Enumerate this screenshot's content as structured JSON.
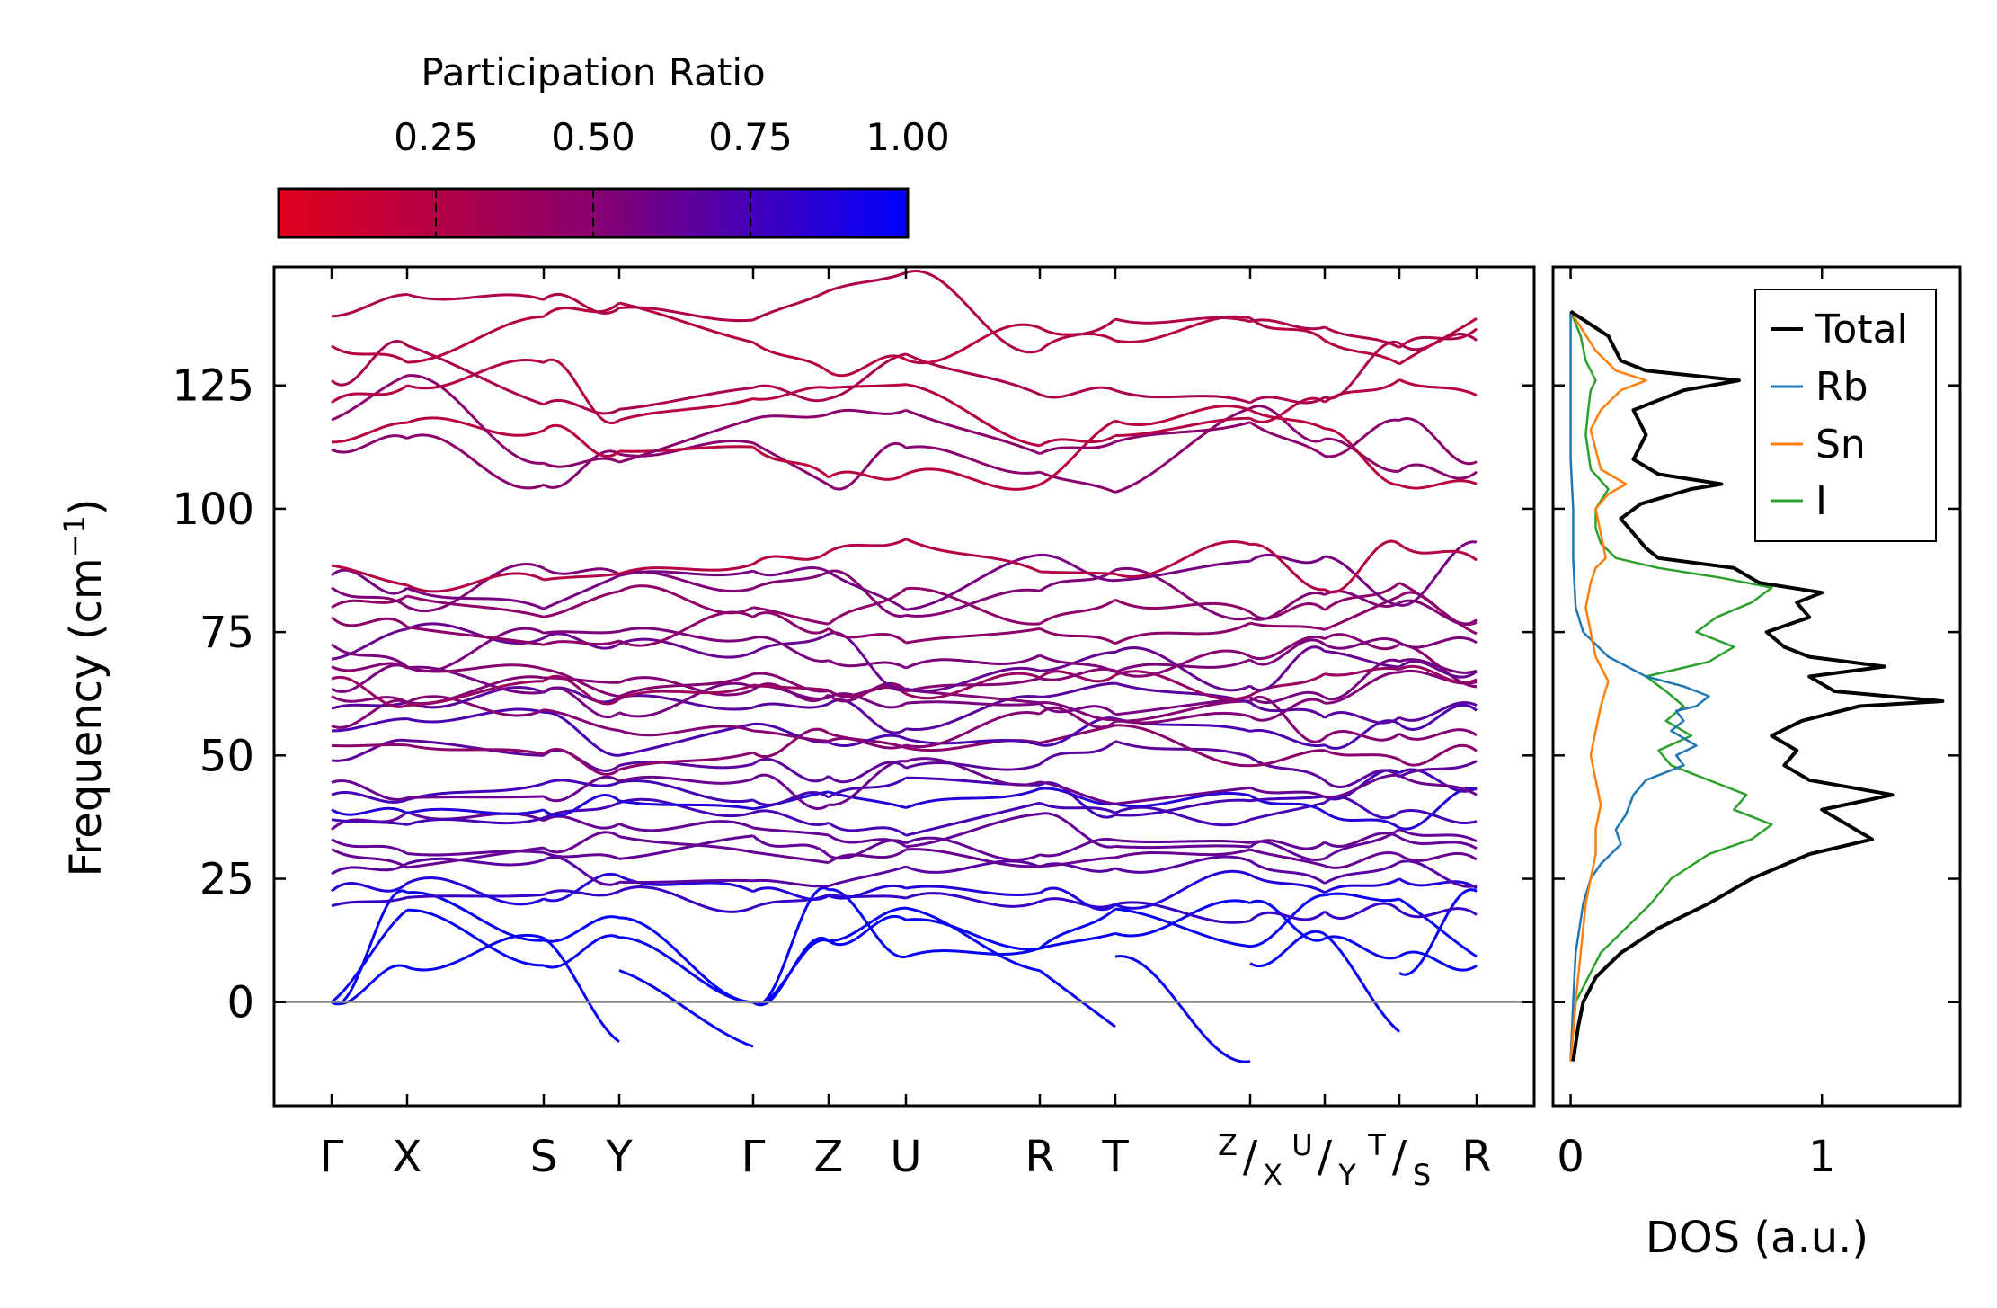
{
  "chart_data": [
    {
      "type": "line",
      "subtype": "phonon-band-structure",
      "ylabel": "Frequency (cm",
      "ylabel_sup": "−1",
      "ylabel_end": ")",
      "ylim": [
        -21,
        149
      ],
      "yticks": [
        0,
        25,
        50,
        75,
        100,
        125
      ],
      "ytick_labels": [
        "0",
        "25",
        "50",
        "75",
        "100",
        "125"
      ],
      "zero_line": true,
      "kpoint_labels": [
        "Γ",
        "X",
        "S",
        "Y",
        "Γ",
        "Z",
        "U",
        "R",
        "T",
        "Z",
        "X",
        "U",
        "Y",
        "T",
        "S",
        "R"
      ],
      "kpoint_text": {
        "g1": "Γ",
        "x": "X",
        "s": "S",
        "y": "Y",
        "g2": "Γ",
        "z": "Z",
        "u": "U",
        "r1": "R",
        "t": "T",
        "zx_top": "Z",
        "zx_bot": "X",
        "uy_top": "U",
        "uy_bot": "Y",
        "ts_top": "T",
        "ts_bot": "S",
        "r2": "R",
        "slash": "/"
      },
      "segments": [
        {
          "from": "Γ",
          "to": "X"
        },
        {
          "from": "X",
          "to": "S"
        },
        {
          "from": "S",
          "to": "Y"
        },
        {
          "from": "Y",
          "to": "Γ"
        },
        {
          "from": "Γ",
          "to": "Z"
        },
        {
          "from": "Z",
          "to": "U"
        },
        {
          "from": "U",
          "to": "R"
        },
        {
          "from": "R",
          "to": "T"
        },
        {
          "from": "T",
          "to": "Z"
        },
        {
          "from": "X",
          "to": "U"
        },
        {
          "from": "Y",
          "to": "T"
        },
        {
          "from": "S",
          "to": "R"
        }
      ],
      "colorbar": {
        "label": "Participation Ratio",
        "range": [
          0.0,
          1.0
        ],
        "ticks": [
          0.25,
          0.5,
          0.75,
          1.0
        ],
        "tick_labels": [
          "0.25",
          "0.50",
          "0.75",
          "1.00"
        ],
        "colors": [
          "#e0001c",
          "#88006f",
          "#0000ff"
        ]
      },
      "band_frequencies_at_gamma": [
        0,
        0,
        0,
        19.5,
        22.5,
        26,
        31,
        33,
        35,
        37,
        39,
        42,
        44.5,
        49,
        52,
        55,
        56,
        59.5,
        62,
        63.5,
        65.5,
        68,
        69.5,
        72.5,
        78,
        80,
        84,
        86.5,
        88.5,
        112,
        113.5,
        118,
        121.5,
        126,
        133,
        139
      ]
    },
    {
      "type": "line",
      "subtype": "density-of-states",
      "xlabel": "DOS (a.u.)",
      "xlim": [
        -0.07,
        1.55
      ],
      "xticks": [
        0,
        1
      ],
      "xtick_labels": [
        "0",
        "1"
      ],
      "ylim": [
        -21,
        149
      ],
      "legend_position": "top-right",
      "series": [
        {
          "name": "Total",
          "color": "#000000",
          "freq": [
            -12,
            -5,
            0,
            5,
            10,
            15,
            20,
            25,
            30,
            33,
            36,
            39,
            42,
            45,
            48,
            51,
            54,
            57,
            60,
            61,
            63,
            66,
            68,
            70,
            72,
            75,
            78,
            81,
            83,
            85,
            88,
            90,
            92,
            95,
            98,
            101,
            104,
            105,
            107,
            110,
            115,
            120,
            124,
            126,
            128,
            130,
            135,
            140
          ],
          "value": [
            0.01,
            0.03,
            0.05,
            0.1,
            0.2,
            0.35,
            0.55,
            0.72,
            0.95,
            1.2,
            1.1,
            1.0,
            1.28,
            0.95,
            0.85,
            0.9,
            0.8,
            0.92,
            1.15,
            1.48,
            1.05,
            0.95,
            1.25,
            0.95,
            0.85,
            0.78,
            0.95,
            0.9,
            1.0,
            0.75,
            0.65,
            0.35,
            0.3,
            0.25,
            0.2,
            0.28,
            0.48,
            0.6,
            0.35,
            0.25,
            0.3,
            0.25,
            0.45,
            0.67,
            0.3,
            0.2,
            0.15,
            0.0
          ]
        },
        {
          "name": "Rb",
          "color": "#1f77b4",
          "freq": [
            -12,
            0,
            10,
            20,
            25,
            28,
            30,
            32,
            35,
            38,
            42,
            45,
            48,
            50,
            52,
            55,
            57,
            59,
            60,
            62,
            64,
            66,
            70,
            75,
            80,
            90,
            100,
            110,
            125,
            140
          ],
          "value": [
            0.0,
            0.01,
            0.02,
            0.05,
            0.08,
            0.12,
            0.16,
            0.2,
            0.18,
            0.22,
            0.25,
            0.3,
            0.45,
            0.42,
            0.5,
            0.4,
            0.45,
            0.42,
            0.5,
            0.55,
            0.45,
            0.3,
            0.15,
            0.05,
            0.02,
            0.01,
            0.01,
            0.0,
            0.0,
            0.0
          ]
        },
        {
          "name": "Sn",
          "color": "#ff7f0e",
          "freq": [
            -12,
            0,
            10,
            20,
            25,
            30,
            35,
            40,
            45,
            50,
            55,
            60,
            65,
            70,
            75,
            80,
            85,
            88,
            90,
            95,
            100,
            103,
            105,
            108,
            112,
            116,
            120,
            124,
            126,
            128,
            132,
            136,
            140
          ],
          "value": [
            0.0,
            0.02,
            0.04,
            0.06,
            0.08,
            0.1,
            0.1,
            0.12,
            0.1,
            0.08,
            0.1,
            0.12,
            0.15,
            0.1,
            0.08,
            0.06,
            0.08,
            0.1,
            0.14,
            0.12,
            0.1,
            0.15,
            0.22,
            0.12,
            0.1,
            0.08,
            0.12,
            0.2,
            0.3,
            0.18,
            0.1,
            0.05,
            0.0
          ]
        },
        {
          "name": "I",
          "color": "#2ca02c",
          "freq": [
            -12,
            0,
            10,
            15,
            20,
            25,
            30,
            33,
            36,
            39,
            42,
            45,
            48,
            51,
            54,
            57,
            60,
            63,
            66,
            69,
            72,
            75,
            78,
            81,
            84,
            86,
            88,
            90,
            93,
            96,
            100,
            104,
            108,
            115,
            120,
            124,
            126,
            130,
            135,
            140
          ],
          "value": [
            0.0,
            0.02,
            0.12,
            0.22,
            0.32,
            0.4,
            0.55,
            0.72,
            0.8,
            0.65,
            0.7,
            0.55,
            0.4,
            0.35,
            0.48,
            0.38,
            0.45,
            0.38,
            0.3,
            0.55,
            0.65,
            0.5,
            0.58,
            0.72,
            0.8,
            0.6,
            0.35,
            0.18,
            0.12,
            0.1,
            0.1,
            0.15,
            0.08,
            0.06,
            0.07,
            0.08,
            0.1,
            0.06,
            0.04,
            0.0
          ]
        }
      ]
    }
  ]
}
